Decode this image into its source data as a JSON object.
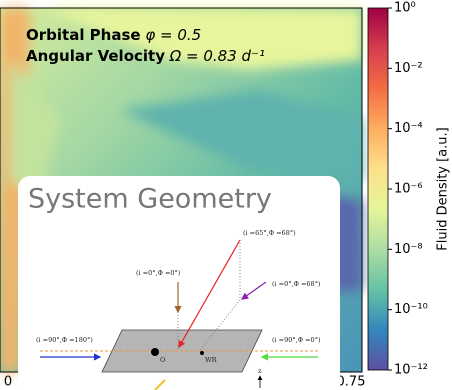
{
  "chart_data": {
    "type": "heatmap",
    "annotations": [
      {
        "label": "Orbital Phase",
        "text": "φ = 0.5"
      },
      {
        "label": "Angular Velocity",
        "text": "Ω = 0.83 d⁻¹"
      }
    ],
    "x_tick_labels": [
      "0",
      "0.75"
    ],
    "colorbar": {
      "label": "Fluid Density [a.u.]",
      "log_scale": true,
      "clim": [
        1e-12,
        1
      ],
      "colors": [
        "#9e0142",
        "#d53e4f",
        "#f46d43",
        "#fdae61",
        "#fee08b",
        "#e6f598",
        "#abdda4",
        "#66c2a5",
        "#3288bd",
        "#5e4fa2"
      ],
      "ticks": [
        {
          "value": 1,
          "label": "10⁰"
        },
        {
          "value": 0.01,
          "label": "10⁻²"
        },
        {
          "value": 0.0001,
          "label": "10⁻⁴"
        },
        {
          "value": 1e-06,
          "label": "10⁻⁶"
        },
        {
          "value": 1e-08,
          "label": "10⁻⁸"
        },
        {
          "value": 1e-10,
          "label": "10⁻¹⁰"
        },
        {
          "value": 1e-12,
          "label": "10⁻¹²"
        }
      ]
    },
    "inset": {
      "title": "System Geometry",
      "views": [
        "(i =65°,Φ =68°)",
        "(i =0°,Φ =0°)",
        "(i =0°,Φ =68°)",
        "(i =90°,Φ =180°)",
        "(i =90°,Φ =0°)"
      ],
      "bodies": [
        "O",
        "WR"
      ],
      "axis_label": "z"
    }
  }
}
